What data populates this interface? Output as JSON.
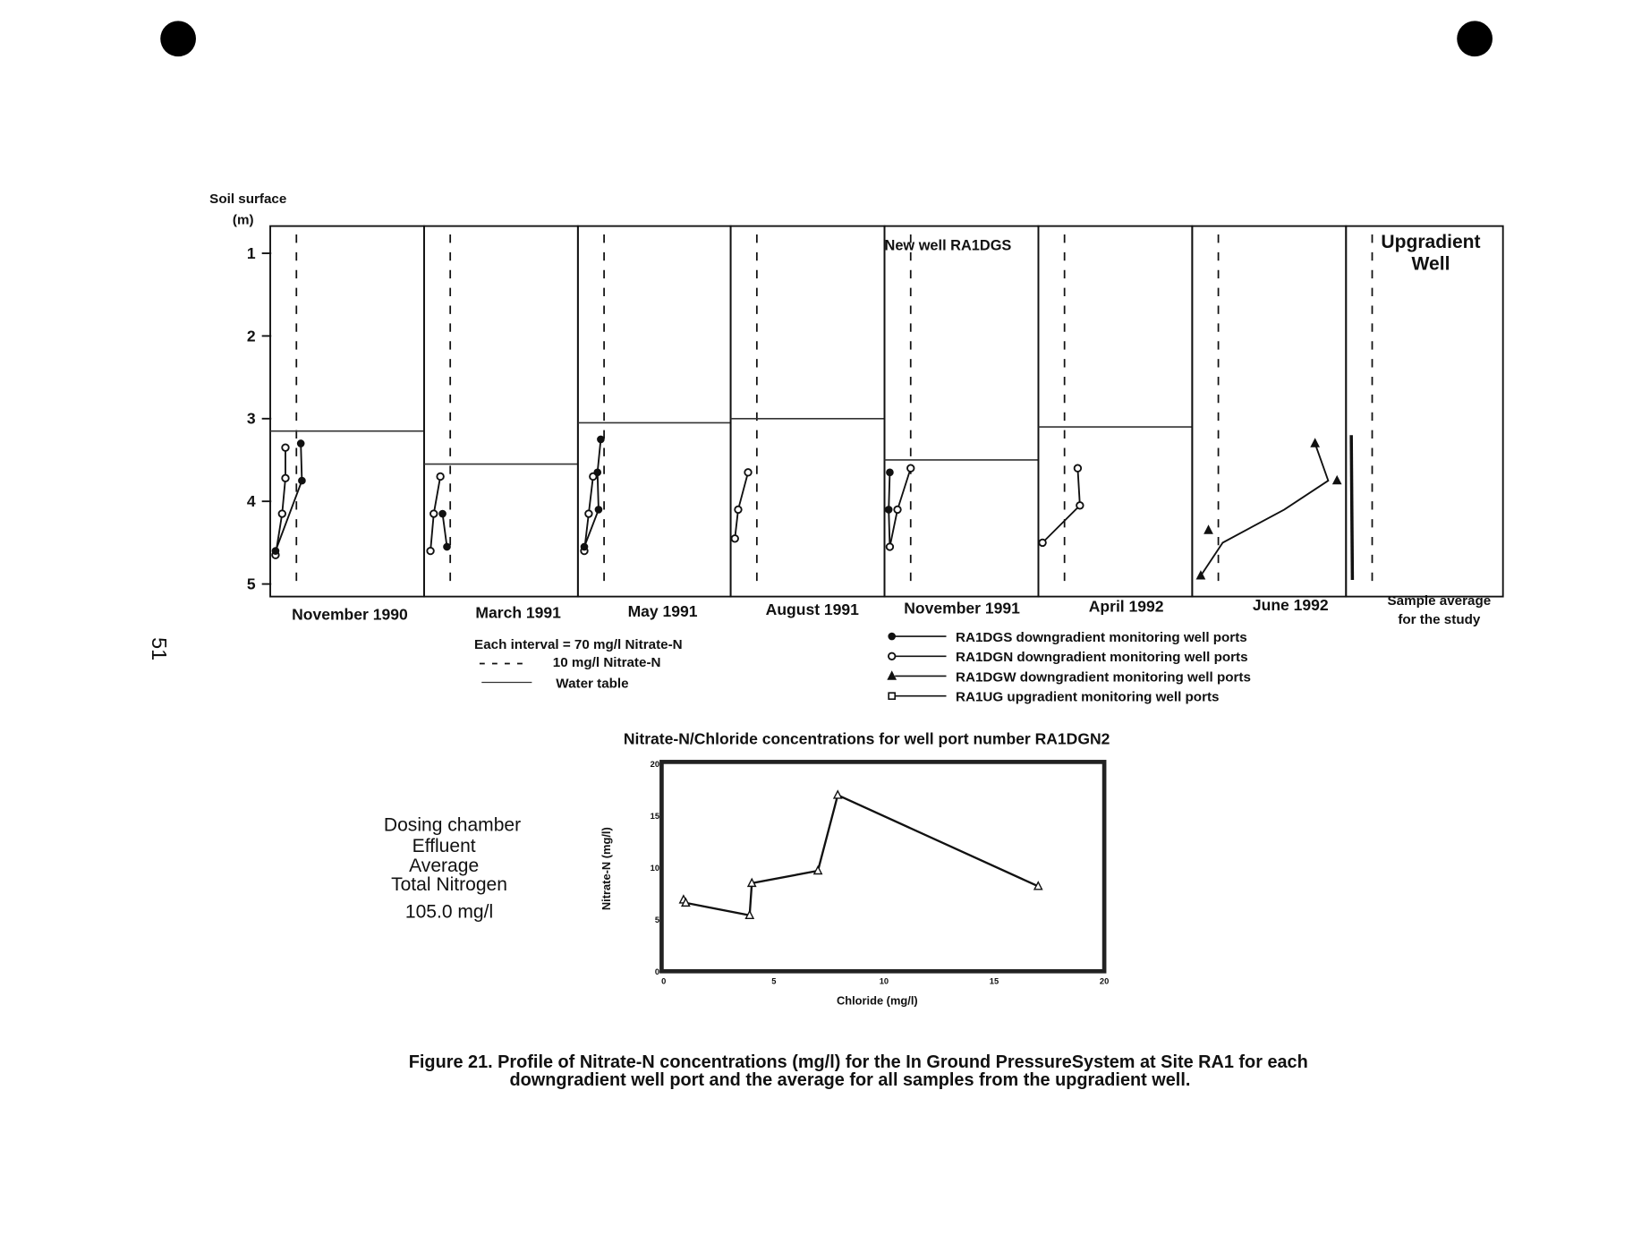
{
  "page_number": "51",
  "profile_chart": {
    "y_label_line1": "Soil surface",
    "y_label_line2": "(m)",
    "y_ticks": [
      "1",
      "2",
      "3",
      "4",
      "5"
    ],
    "y_range": [
      0.7,
      5.15
    ],
    "x_interval_mg_l": 70,
    "reference_line_mg_l": 10,
    "annotation_new_well": "New well RA1DGS",
    "upgradient_label_line1": "Upgradient",
    "upgradient_label_line2": "Well",
    "panels": [
      {
        "label": "November 1990",
        "water_table": 3.15,
        "series": [
          {
            "marker": "open-circle",
            "points": [
              [
                0.5,
                4.65
              ],
              [
                3.5,
                4.15
              ],
              [
                5,
                3.72
              ],
              [
                5,
                3.35
              ]
            ]
          },
          {
            "marker": "filled-circle",
            "points": [
              [
                0.5,
                4.6
              ],
              [
                12.5,
                3.75
              ],
              [
                12,
                3.3
              ]
            ]
          }
        ]
      },
      {
        "label": "March 1991",
        "water_table": 3.55,
        "series": [
          {
            "marker": "open-circle",
            "points": [
              [
                1,
                4.6
              ],
              [
                2.5,
                4.15
              ],
              [
                5.5,
                3.7
              ]
            ]
          },
          {
            "marker": "filled-circle",
            "points": [
              [
                6.5,
                4.15
              ],
              [
                8.5,
                4.55
              ]
            ]
          }
        ]
      },
      {
        "label": "May 1991",
        "water_table": 3.05,
        "series": [
          {
            "marker": "open-circle",
            "points": [
              [
                1,
                4.6
              ],
              [
                3,
                4.15
              ],
              [
                5,
                3.7
              ]
            ]
          },
          {
            "marker": "filled-circle",
            "points": [
              [
                1,
                4.55
              ],
              [
                7.5,
                4.1
              ],
              [
                7,
                3.65
              ],
              [
                8.5,
                3.25
              ]
            ]
          }
        ]
      },
      {
        "label": "August 1991",
        "water_table": 3.0,
        "series": [
          {
            "marker": "open-circle",
            "points": [
              [
                0,
                4.45
              ],
              [
                1.5,
                4.1
              ],
              [
                6,
                3.65
              ]
            ]
          }
        ]
      },
      {
        "label": "November 1991",
        "water_table": 3.5,
        "series": [
          {
            "marker": "filled-circle",
            "points": [
              [
                0.5,
                4.55
              ],
              [
                0,
                4.1
              ],
              [
                0.5,
                3.65
              ]
            ]
          },
          {
            "marker": "open-circle",
            "points": [
              [
                0.5,
                4.55
              ],
              [
                4,
                4.1
              ],
              [
                10,
                3.6
              ]
            ]
          }
        ]
      },
      {
        "label": "April 1992",
        "water_table": 3.1,
        "series": [
          {
            "marker": "open-circle",
            "points": [
              [
                0,
                4.5
              ],
              [
                17,
                4.05
              ],
              [
                16,
                3.6
              ]
            ]
          }
        ]
      },
      {
        "label": "June 1992",
        "water_table": null,
        "series": [
          {
            "marker": "filled-triangle",
            "points": [
              [
                2,
                4.9
              ],
              [
                12,
                4.5
              ],
              [
                40,
                4.1
              ],
              [
                60,
                3.75
              ],
              [
                54,
                3.3
              ]
            ]
          },
          {
            "marker": "filled-triangle",
            "points": [
              [
                5.5,
                4.35
              ]
            ]
          },
          {
            "marker": "filled-triangle",
            "points": [
              [
                64,
                3.75
              ]
            ]
          }
        ]
      },
      {
        "label": "Sample average for the study",
        "water_table": null,
        "series": [
          {
            "marker": "open-square",
            "points": [
              [
                0.5,
                3.2
              ],
              [
                1,
                4.95
              ]
            ]
          }
        ]
      }
    ],
    "legend_left": {
      "interval": "Each interval  =  70 mg/l Nitrate-N",
      "dashed": "10 mg/l Nitrate-N",
      "water_table": "Water table"
    },
    "legend_right": [
      {
        "marker": "filled-circle",
        "label": "RA1DGS downgradient monitoring well ports"
      },
      {
        "marker": "open-circle",
        "label": "RA1DGN downgradient monitoring well ports"
      },
      {
        "marker": "filled-triangle",
        "label": "RA1DGW downgradient monitoring well ports"
      },
      {
        "marker": "open-square",
        "label": "RA1UG upgradient monitoring well ports"
      }
    ]
  },
  "dosing_note": [
    "Dosing chamber",
    "Effluent",
    "Average",
    "Total Nitrogen",
    "105.0 mg/l"
  ],
  "chart_data": {
    "type": "line",
    "title": "Nitrate-N/Chloride concentrations for well port number RA1DGN2",
    "xlabel": "Chloride (mg/l)",
    "ylabel": "Nitrate-N (mg/l)",
    "xlim": [
      0,
      20
    ],
    "ylim": [
      0,
      20
    ],
    "x_ticks": [
      "0",
      "5",
      "10",
      "15",
      "20"
    ],
    "y_ticks": [
      "0",
      "5",
      "10",
      "15",
      "20"
    ],
    "marker": "open-triangle",
    "points": [
      [
        0.9,
        6.9
      ],
      [
        1.0,
        6.6
      ],
      [
        3.9,
        5.4
      ],
      [
        4.0,
        8.5
      ],
      [
        7.0,
        9.7
      ],
      [
        7.9,
        17.0
      ],
      [
        17.0,
        8.2
      ]
    ]
  },
  "caption_line1": "Figure 21. Profile of Nitrate-N concentrations (mg/l) for the In Ground PressureSystem at Site RA1 for each",
  "caption_line2": "downgradient well port and the average for all samples from the upgradient well."
}
